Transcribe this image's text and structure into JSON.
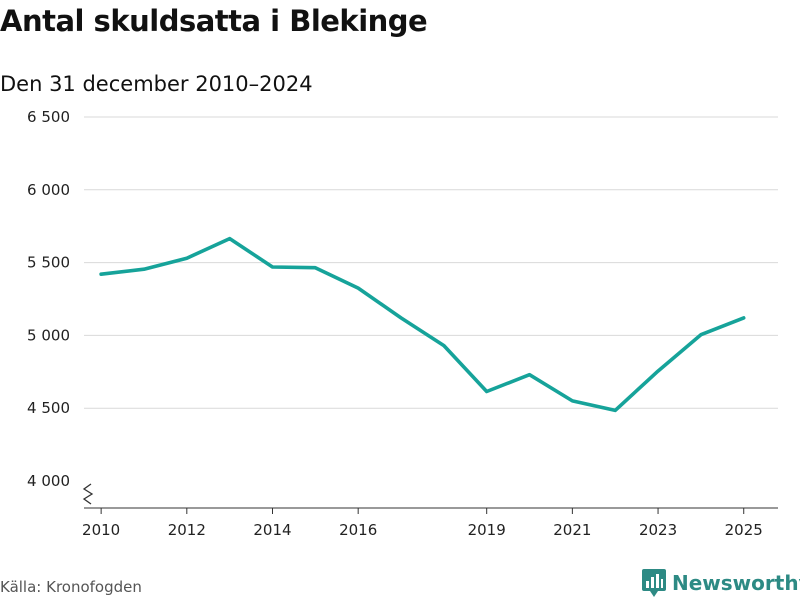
{
  "chart_data": {
    "type": "line",
    "title": "Antal skuldsatta i Blekinge",
    "subtitle": "Den 31 december 2010–2024",
    "xlabel": "",
    "ylabel": "",
    "x": [
      2010,
      2011,
      2012,
      2013,
      2014,
      2015,
      2016,
      2017,
      2018,
      2019,
      2020,
      2021,
      2022,
      2023,
      2024,
      2025
    ],
    "values": [
      5420,
      5455,
      5530,
      5665,
      5470,
      5465,
      5325,
      5120,
      4930,
      4615,
      4730,
      4550,
      4485,
      4755,
      5005,
      5120
    ],
    "xlim": [
      2009.6,
      2025.8
    ],
    "ylim": [
      4000,
      6500
    ],
    "yticks": [
      4000,
      4500,
      5000,
      5500,
      6000,
      6500
    ],
    "ytick_labels": [
      "4 000",
      "4 500",
      "5 000",
      "5 500",
      "6 000",
      "6 500"
    ],
    "xticks": [
      2010,
      2012,
      2014,
      2016,
      2019,
      2021,
      2023,
      2025
    ],
    "xtick_labels": [
      "2010",
      "2012",
      "2014",
      "2016",
      "2019",
      "2021",
      "2023",
      "2025"
    ],
    "line_color": "#16a39a",
    "grid": true
  },
  "footer": {
    "source": "Källa: Kronofogden",
    "brand": "Newsworthy"
  }
}
